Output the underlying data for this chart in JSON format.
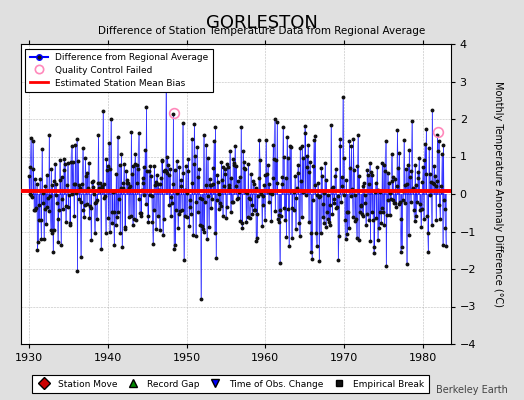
{
  "title": "GORLESTON",
  "subtitle": "Difference of Station Temperature Data from Regional Average",
  "ylabel": "Monthly Temperature Anomaly Difference (°C)",
  "ylim": [
    -4,
    4
  ],
  "xlim": [
    1929.0,
    1983.5
  ],
  "xticks": [
    1930,
    1940,
    1950,
    1960,
    1970,
    1980
  ],
  "yticks": [
    -4,
    -3,
    -2,
    -1,
    0,
    1,
    2,
    3,
    4
  ],
  "mean_bias": 0.07,
  "bias_color": "#ff0000",
  "line_color": "#0000ff",
  "marker_color": "#111111",
  "qc_failed_edge_color": "#ff88bb",
  "qc_failed_years": [
    1948.4,
    1981.9
  ],
  "qc_failed_vals": [
    2.15,
    1.65
  ],
  "background_color": "#e0e0e0",
  "plot_bg_color": "#ffffff",
  "watermark": "Berkeley Earth",
  "seed": 42
}
